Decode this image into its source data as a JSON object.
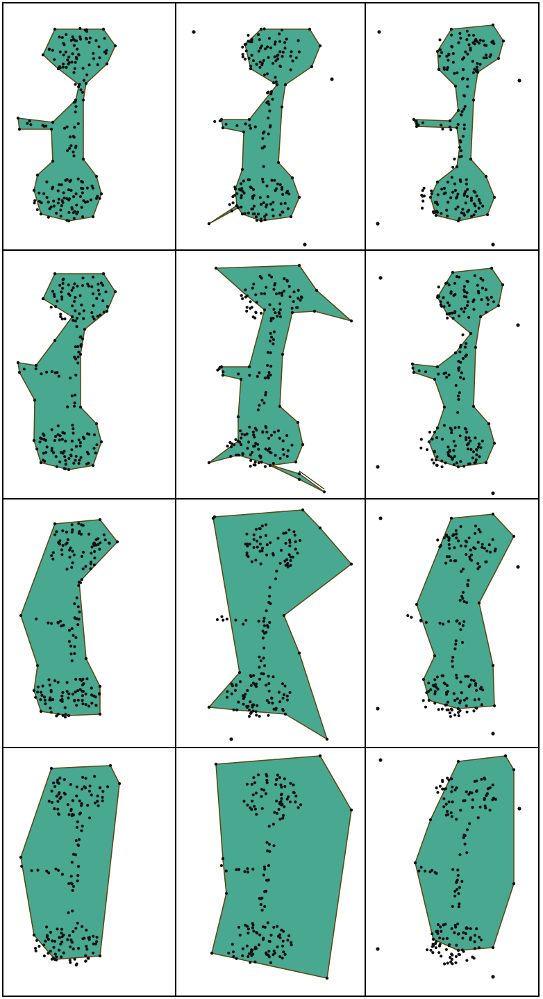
{
  "figure": {
    "rows": 4,
    "cols": 3,
    "colors": {
      "fill": "#48a890",
      "outline": "#5a4a14",
      "points": "#111111",
      "grid": "#000000",
      "background": "#ffffff"
    }
  }
}
